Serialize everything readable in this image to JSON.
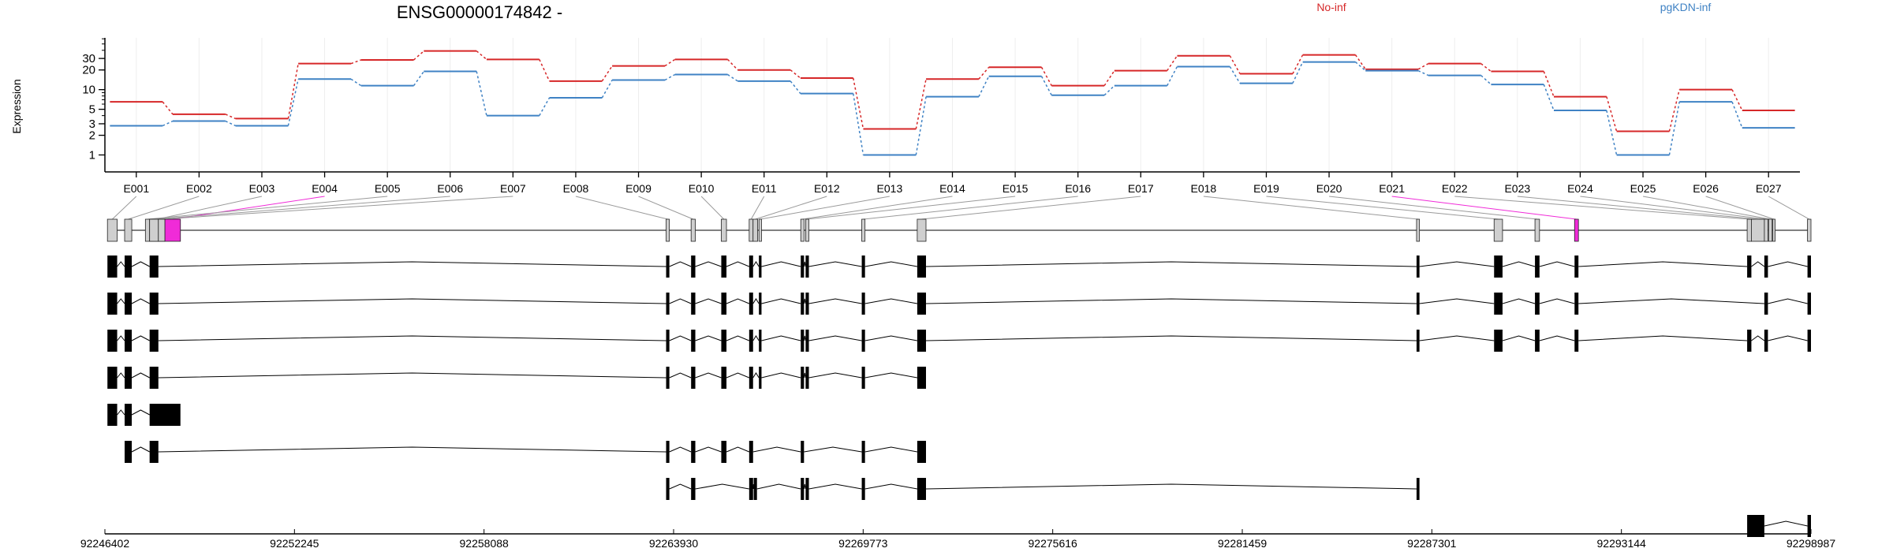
{
  "chart_data": {
    "type": "line",
    "title": "ENSG00000174842 -",
    "ylabel": "Expression",
    "xlabel": "",
    "y_scale": "log",
    "y_ticks": [
      1,
      2,
      3,
      5,
      10,
      20,
      30
    ],
    "ylim": [
      0.55,
      62
    ],
    "categories": [
      "E001",
      "E002",
      "E003",
      "E004",
      "E005",
      "E006",
      "E007",
      "E008",
      "E009",
      "E010",
      "E011",
      "E012",
      "E013",
      "E014",
      "E015",
      "E016",
      "E017",
      "E018",
      "E019",
      "E020",
      "E021",
      "E022",
      "E023",
      "E024",
      "E025",
      "E026",
      "E027"
    ],
    "series": [
      {
        "name": "No-inf",
        "color": "#d62728",
        "values": [
          6.5,
          4.2,
          3.6,
          25,
          28.5,
          39,
          29,
          13.5,
          23,
          29,
          20,
          15,
          2.5,
          14.5,
          22,
          11.5,
          19.5,
          33,
          17.5,
          34,
          20.5,
          25,
          19,
          7.8,
          2.3,
          10,
          4.8
        ]
      },
      {
        "name": "pgKDN-inf",
        "color": "#3f82c4",
        "values": [
          2.8,
          3.3,
          2.8,
          14.5,
          11.5,
          19,
          4,
          7.5,
          14,
          17,
          13.5,
          8.7,
          1.0,
          7.8,
          16,
          8.2,
          11.5,
          22.5,
          12.5,
          26.5,
          19.5,
          16.5,
          12,
          4.8,
          1.0,
          6.5,
          2.6
        ]
      }
    ],
    "exon_model": {
      "exon_coords_bp": [
        [
          92246480,
          92246780
        ],
        [
          92247010,
          92247230
        ],
        [
          92247780,
          92248250
        ],
        [
          92248250,
          92248730
        ],
        [
          92247650,
          92247780
        ],
        [
          92247780,
          92248050
        ],
        [
          92248050,
          92248250
        ],
        [
          92263700,
          92263800
        ],
        [
          92264470,
          92264600
        ],
        [
          92265400,
          92265560
        ],
        [
          92266260,
          92266380
        ],
        [
          92266380,
          92266520
        ],
        [
          92266560,
          92266640
        ],
        [
          92267850,
          92267950
        ],
        [
          92268000,
          92268100
        ],
        [
          92269730,
          92269830
        ],
        [
          92271440,
          92271710
        ],
        [
          92286830,
          92286920
        ],
        [
          92289220,
          92289480
        ],
        [
          92290480,
          92290620
        ],
        [
          92291700,
          92291820
        ],
        [
          92297020,
          92297150
        ],
        [
          92297150,
          92297550
        ],
        [
          92297550,
          92297660
        ],
        [
          92297680,
          92297790
        ],
        [
          92297810,
          92297880
        ],
        [
          92298880,
          92298987
        ]
      ],
      "highlighted_exons": [
        "E004",
        "E021"
      ],
      "highlight_color": "#f02bd8",
      "transcripts": [
        [
          [
            92246480,
            92246780
          ],
          [
            92247010,
            92247230
          ],
          [
            92247780,
            92248050
          ],
          [
            92263700,
            92263800
          ],
          [
            92264470,
            92264600
          ],
          [
            92265400,
            92265560
          ],
          [
            92266260,
            92266380
          ],
          [
            92266560,
            92266640
          ],
          [
            92267850,
            92267950
          ],
          [
            92268000,
            92268100
          ],
          [
            92269730,
            92269830
          ],
          [
            92271440,
            92271710
          ],
          [
            92286830,
            92286920
          ],
          [
            92289220,
            92289480
          ],
          [
            92290480,
            92290620
          ],
          [
            92291700,
            92291820
          ],
          [
            92297020,
            92297150
          ],
          [
            92297550,
            92297660
          ],
          [
            92298880,
            92298987
          ]
        ],
        [
          [
            92246480,
            92246780
          ],
          [
            92247010,
            92247230
          ],
          [
            92247780,
            92248050
          ],
          [
            92263700,
            92263800
          ],
          [
            92264470,
            92264600
          ],
          [
            92265400,
            92265560
          ],
          [
            92266260,
            92266380
          ],
          [
            92266560,
            92266640
          ],
          [
            92267850,
            92267950
          ],
          [
            92268000,
            92268100
          ],
          [
            92269730,
            92269830
          ],
          [
            92271440,
            92271710
          ],
          [
            92286830,
            92286920
          ],
          [
            92289220,
            92289480
          ],
          [
            92290480,
            92290620
          ],
          [
            92291700,
            92291820
          ],
          [
            92297550,
            92297660
          ],
          [
            92298880,
            92298987
          ]
        ],
        [
          [
            92246480,
            92246780
          ],
          [
            92247010,
            92247230
          ],
          [
            92247780,
            92248050
          ],
          [
            92263700,
            92263800
          ],
          [
            92264470,
            92264600
          ],
          [
            92265400,
            92265560
          ],
          [
            92266260,
            92266380
          ],
          [
            92266560,
            92266640
          ],
          [
            92267850,
            92267950
          ],
          [
            92268000,
            92268100
          ],
          [
            92269730,
            92269830
          ],
          [
            92271440,
            92271710
          ],
          [
            92286830,
            92286920
          ],
          [
            92289220,
            92289480
          ],
          [
            92290480,
            92290620
          ],
          [
            92291700,
            92291820
          ],
          [
            92297020,
            92297150
          ],
          [
            92297550,
            92297660
          ],
          [
            92298880,
            92298987
          ]
        ],
        [
          [
            92246480,
            92246780
          ],
          [
            92247010,
            92247230
          ],
          [
            92247780,
            92248050
          ],
          [
            92263700,
            92263800
          ],
          [
            92264470,
            92264600
          ],
          [
            92265400,
            92265560
          ],
          [
            92266260,
            92266380
          ],
          [
            92266560,
            92266640
          ],
          [
            92267850,
            92267950
          ],
          [
            92268000,
            92268100
          ],
          [
            92269730,
            92269830
          ],
          [
            92271440,
            92271710
          ]
        ],
        [
          [
            92246480,
            92246780
          ],
          [
            92247010,
            92247230
          ],
          [
            92247780,
            92248730
          ]
        ],
        [
          [
            92247010,
            92247230
          ],
          [
            92247780,
            92248050
          ],
          [
            92263700,
            92263800
          ],
          [
            92264470,
            92264600
          ],
          [
            92265400,
            92265560
          ],
          [
            92266260,
            92266380
          ],
          [
            92267850,
            92267950
          ],
          [
            92269730,
            92269830
          ],
          [
            92271440,
            92271710
          ]
        ],
        [
          [
            92263700,
            92263800
          ],
          [
            92264470,
            92264600
          ],
          [
            92266260,
            92266380
          ],
          [
            92266400,
            92266500
          ],
          [
            92267850,
            92267950
          ],
          [
            92268000,
            92268100
          ],
          [
            92269730,
            92269830
          ],
          [
            92271440,
            92271710
          ],
          [
            92286830,
            92286920
          ]
        ],
        [
          [
            92297020,
            92297550
          ],
          [
            92298880,
            92298987
          ]
        ]
      ],
      "axis_ticks": [
        "92246402",
        "92252245",
        "92258088",
        "92263930",
        "92269773",
        "92275616",
        "92281459",
        "92287301",
        "92293144",
        "92298987"
      ],
      "axis_range": [
        92246402,
        92298987
      ]
    }
  }
}
